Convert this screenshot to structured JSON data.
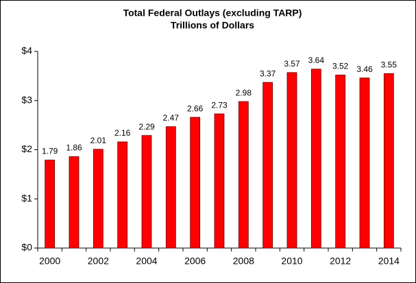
{
  "chart_data": {
    "type": "bar",
    "title": "Total Federal Outlays  (excluding TARP)",
    "subtitle": "Trillions of Dollars",
    "categories": [
      "2000",
      null,
      "2002",
      null,
      "2004",
      null,
      "2006",
      null,
      "2008",
      null,
      "2010",
      null,
      "2012",
      null,
      "2014"
    ],
    "values": [
      1.79,
      1.86,
      2.01,
      2.16,
      2.29,
      2.47,
      2.66,
      2.73,
      2.98,
      3.37,
      3.57,
      3.64,
      3.52,
      3.46,
      3.55
    ],
    "color": "#ff0000",
    "ylim": [
      0,
      4
    ],
    "yticks": [
      {
        "value": 0,
        "label": "$0"
      },
      {
        "value": 1,
        "label": "$1"
      },
      {
        "value": 2,
        "label": "$2"
      },
      {
        "value": 3,
        "label": "$3"
      },
      {
        "value": 4,
        "label": "$4"
      }
    ],
    "grid": false
  }
}
